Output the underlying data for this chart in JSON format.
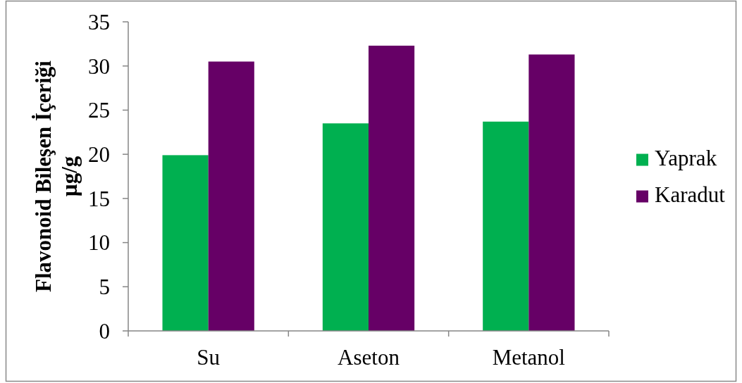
{
  "chart_data": {
    "type": "bar",
    "categories": [
      "Su",
      "Aseton",
      "Metanol"
    ],
    "series": [
      {
        "name": "Yaprak",
        "color": "#00b050",
        "values": [
          19.9,
          23.5,
          23.7
        ]
      },
      {
        "name": "Karadut",
        "color": "#660066",
        "values": [
          30.5,
          32.3,
          31.3
        ]
      }
    ],
    "ylabel": "Flavonoid Bileşen İçeriği\nµg/g",
    "ylim": [
      0,
      35
    ],
    "yticks": [
      0,
      5,
      10,
      15,
      20,
      25,
      30,
      35
    ],
    "grid": false,
    "legend": "right"
  }
}
